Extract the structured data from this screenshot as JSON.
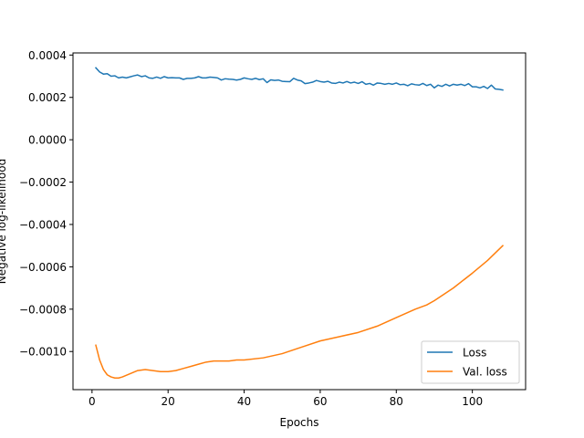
{
  "chart_data": {
    "type": "line",
    "title": "",
    "xlabel": "Epochs",
    "ylabel": "Negative log-likelihood",
    "xlim": [
      -5,
      114
    ],
    "ylim": [
      -0.00118,
      0.00041
    ],
    "xticks": [
      0,
      20,
      40,
      60,
      80,
      100
    ],
    "xtick_labels": [
      "0",
      "20",
      "40",
      "60",
      "80",
      "100"
    ],
    "yticks": [
      -0.001,
      -0.0008,
      -0.0006,
      -0.0004,
      -0.0002,
      0.0,
      0.0002,
      0.0004
    ],
    "ytick_labels": [
      "−0.0010",
      "−0.0008",
      "−0.0006",
      "−0.0004",
      "−0.0002",
      "0.0000",
      "0.0002",
      "0.0004"
    ],
    "grid": false,
    "legend_position": "bottom-right",
    "series": [
      {
        "name": "Loss",
        "color": "#1f77b4",
        "x": [
          1,
          2,
          3,
          4,
          5,
          6,
          7,
          8,
          9,
          10,
          11,
          12,
          13,
          14,
          15,
          16,
          17,
          18,
          19,
          20,
          21,
          22,
          23,
          24,
          25,
          26,
          27,
          28,
          29,
          30,
          31,
          32,
          33,
          34,
          35,
          36,
          37,
          38,
          39,
          40,
          41,
          42,
          43,
          44,
          45,
          46,
          47,
          48,
          49,
          50,
          51,
          52,
          53,
          54,
          55,
          56,
          57,
          58,
          59,
          60,
          61,
          62,
          63,
          64,
          65,
          66,
          67,
          68,
          69,
          70,
          71,
          72,
          73,
          74,
          75,
          76,
          77,
          78,
          79,
          80,
          81,
          82,
          83,
          84,
          85,
          86,
          87,
          88,
          89,
          90,
          91,
          92,
          93,
          94,
          95,
          96,
          97,
          98,
          99,
          100,
          101,
          102,
          103,
          104,
          105,
          106,
          107,
          108
        ],
        "y": [
          0.00034,
          0.00032,
          0.00031,
          0.000312,
          0.0003,
          0.000302,
          0.000292,
          0.000296,
          0.000292,
          0.000297,
          0.000302,
          0.000306,
          0.000298,
          0.000302,
          0.000292,
          0.00029,
          0.000296,
          0.00029,
          0.000298,
          0.000292,
          0.000293,
          0.000292,
          0.000292,
          0.000285,
          0.00029,
          0.00029,
          0.000292,
          0.000298,
          0.000292,
          0.000292,
          0.000296,
          0.000294,
          0.000292,
          0.000282,
          0.000288,
          0.000286,
          0.000285,
          0.000282,
          0.000285,
          0.000292,
          0.000288,
          0.000285,
          0.00029,
          0.000284,
          0.000288,
          0.00027,
          0.000283,
          0.00028,
          0.000282,
          0.000276,
          0.000275,
          0.000274,
          0.00029,
          0.000282,
          0.000278,
          0.000265,
          0.000268,
          0.000272,
          0.00028,
          0.000275,
          0.000272,
          0.000276,
          0.000268,
          0.000266,
          0.000272,
          0.000268,
          0.000275,
          0.000268,
          0.000272,
          0.000266,
          0.000274,
          0.000262,
          0.000266,
          0.000258,
          0.000268,
          0.000266,
          0.000262,
          0.000266,
          0.000262,
          0.000268,
          0.00026,
          0.000262,
          0.000255,
          0.000264,
          0.00026,
          0.000258,
          0.000266,
          0.000256,
          0.000262,
          0.000245,
          0.000258,
          0.000252,
          0.000262,
          0.000254,
          0.000262,
          0.000258,
          0.000262,
          0.000256,
          0.000265,
          0.00025,
          0.00025,
          0.000245,
          0.000252,
          0.000242,
          0.000258,
          0.00024,
          0.000238,
          0.000235
        ]
      },
      {
        "name": "Val. loss",
        "color": "#ff7f0e",
        "x": [
          1,
          2,
          3,
          4,
          5,
          6,
          7,
          8,
          10,
          12,
          14,
          16,
          18,
          20,
          22,
          24,
          26,
          28,
          30,
          32,
          34,
          36,
          38,
          40,
          45,
          50,
          55,
          60,
          65,
          70,
          75,
          80,
          85,
          88,
          90,
          95,
          100,
          104,
          108
        ],
        "y": [
          -0.00097,
          -0.00104,
          -0.001085,
          -0.00111,
          -0.00112,
          -0.001125,
          -0.001125,
          -0.00112,
          -0.001105,
          -0.00109,
          -0.001085,
          -0.00109,
          -0.001095,
          -0.001095,
          -0.00109,
          -0.00108,
          -0.00107,
          -0.00106,
          -0.00105,
          -0.001045,
          -0.001045,
          -0.001045,
          -0.00104,
          -0.00104,
          -0.00103,
          -0.00101,
          -0.00098,
          -0.00095,
          -0.00093,
          -0.00091,
          -0.00088,
          -0.00084,
          -0.0008,
          -0.00078,
          -0.00076,
          -0.0007,
          -0.00063,
          -0.00057,
          -0.0005
        ]
      }
    ]
  }
}
